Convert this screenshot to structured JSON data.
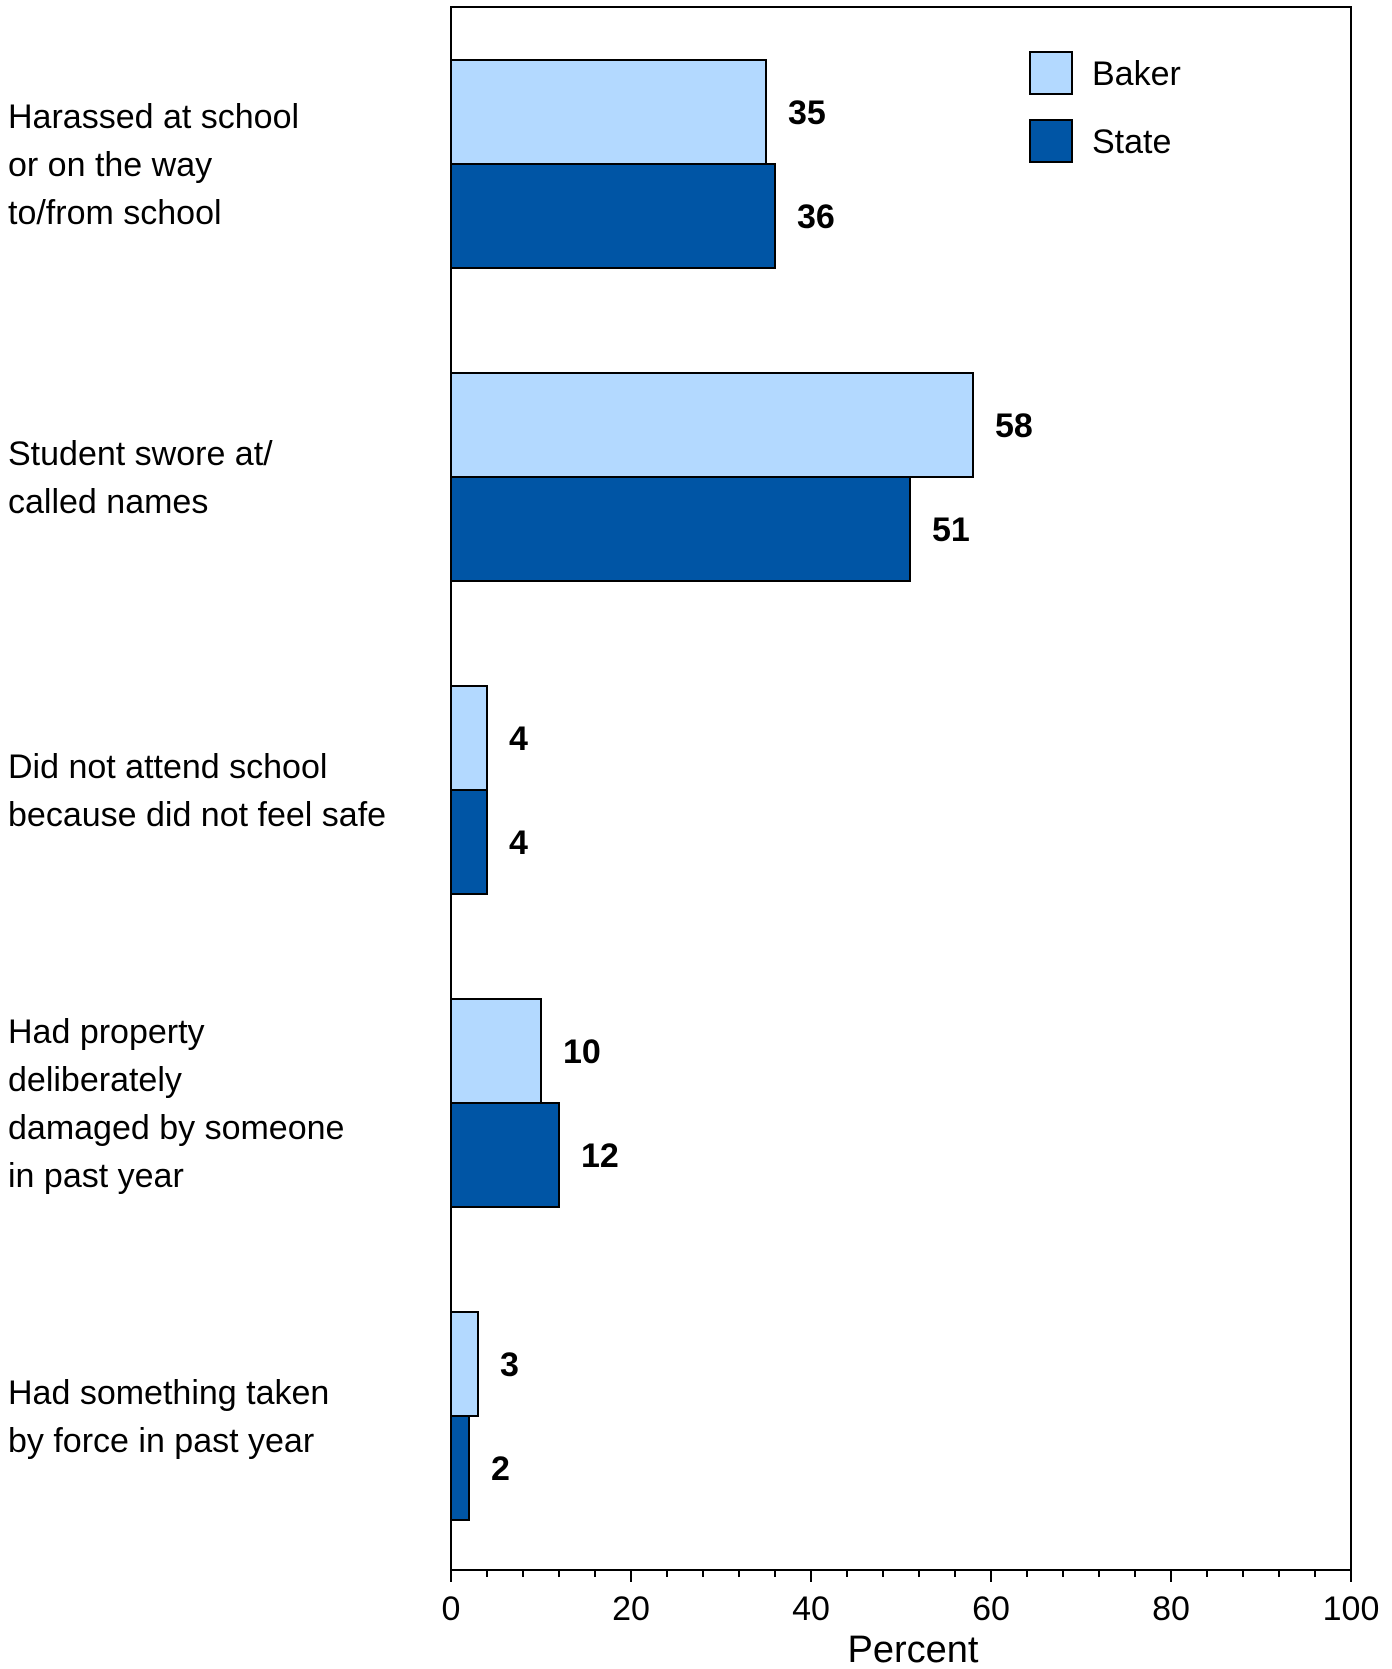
{
  "chart_data": {
    "type": "bar",
    "orientation": "horizontal",
    "categories": [
      [
        "Harassed at school",
        "or on the way",
        "to/from school"
      ],
      [
        "Student swore at/",
        "called names"
      ],
      [
        "Did not attend school",
        "because did not feel safe"
      ],
      [
        "Had property",
        "deliberately",
        "damaged by someone",
        "in past year"
      ],
      [
        "Had something taken",
        "by force in past year"
      ]
    ],
    "series": [
      {
        "name": "Baker",
        "color": "#b3d9ff",
        "values": [
          35,
          58,
          4,
          10,
          3
        ]
      },
      {
        "name": "State",
        "color": "#0055a5",
        "values": [
          36,
          51,
          4,
          12,
          2
        ]
      }
    ],
    "xlabel": "Percent",
    "xlim": [
      0,
      100
    ],
    "xticks": [
      0,
      20,
      40,
      60,
      80,
      100
    ],
    "grid": false,
    "legend_position": "top-right"
  }
}
